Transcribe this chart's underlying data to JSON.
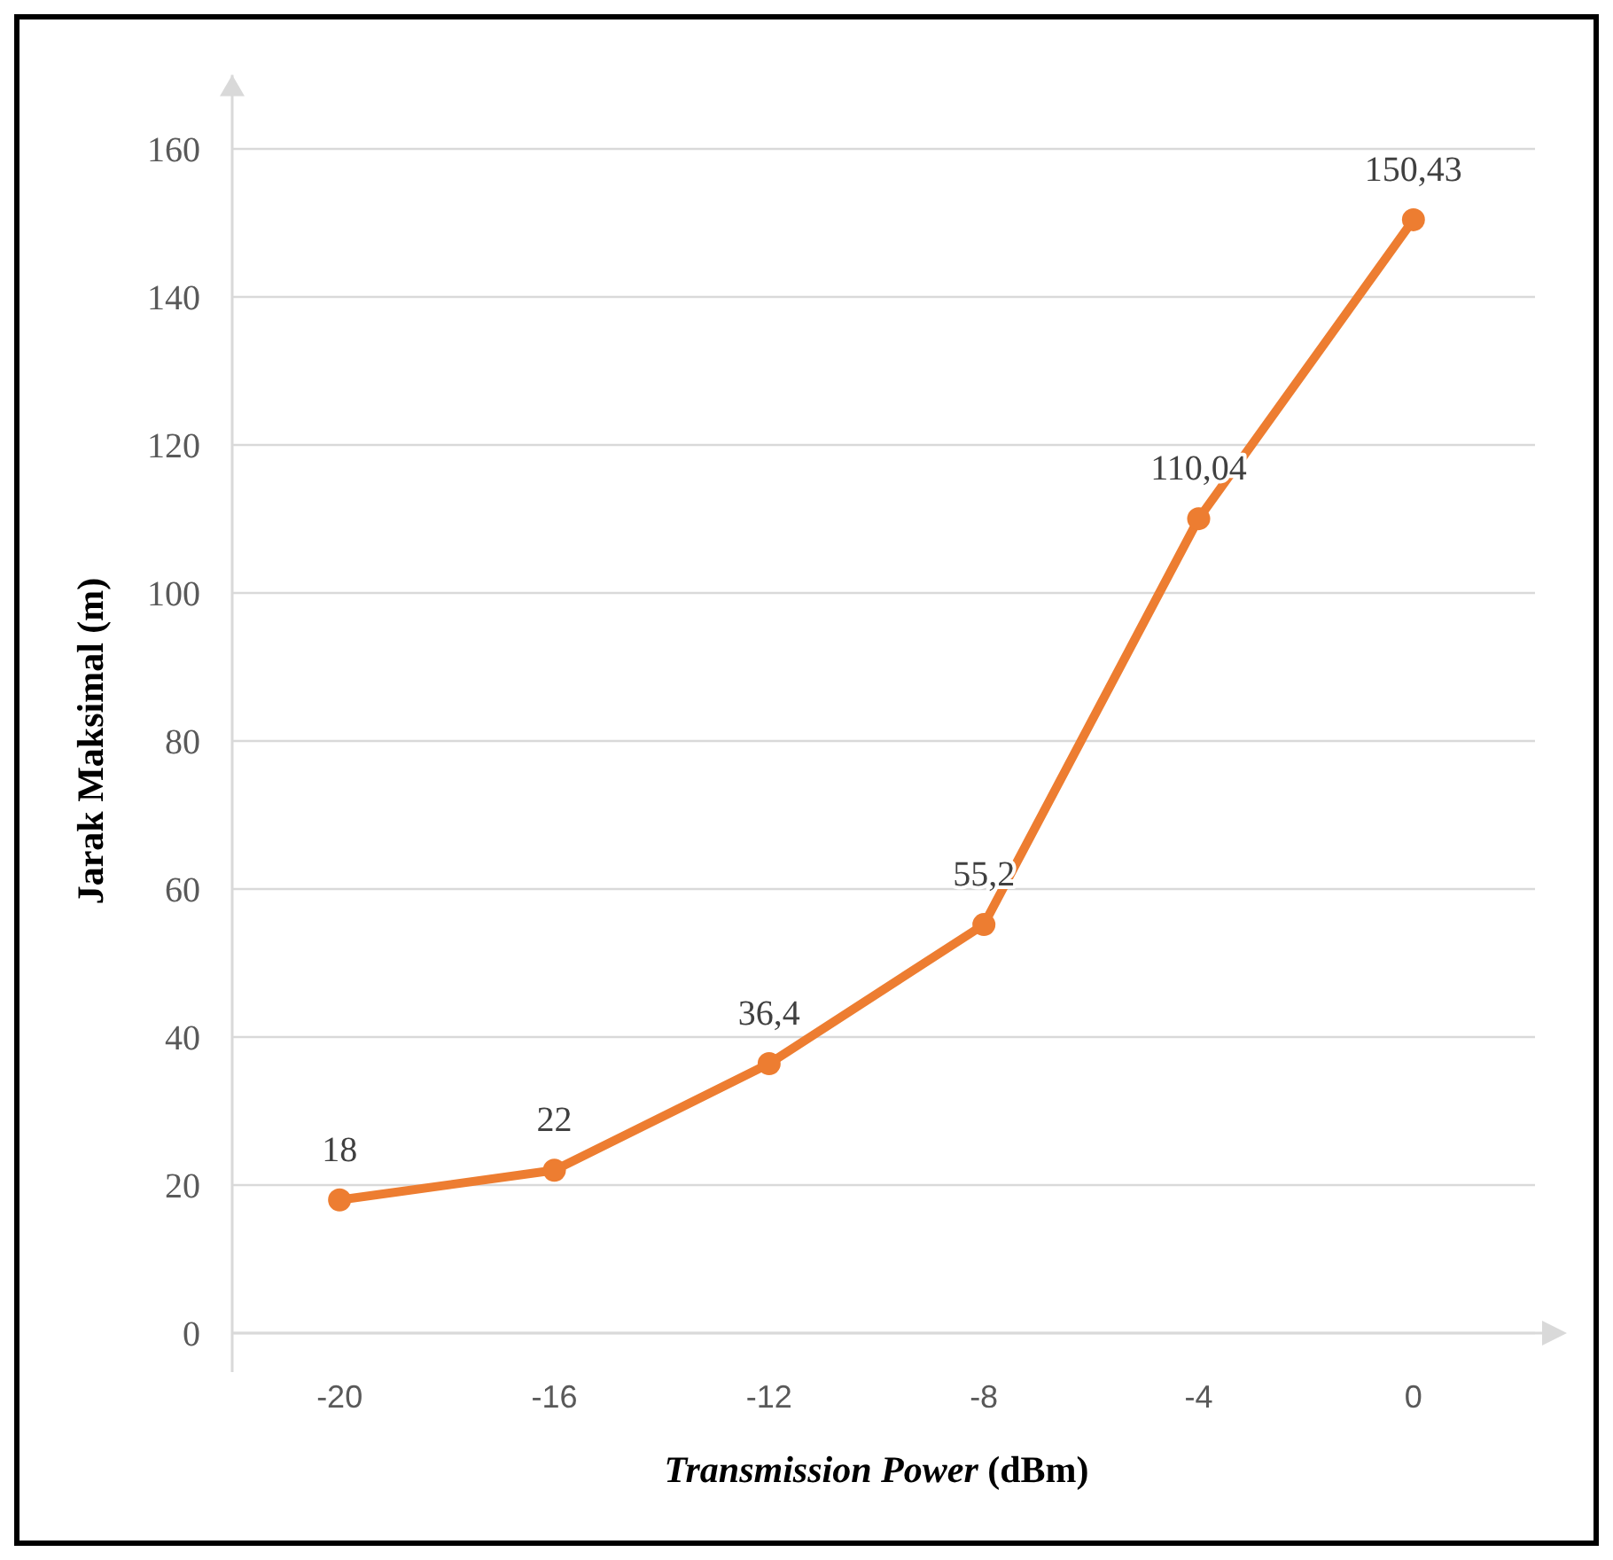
{
  "chart_data": {
    "type": "line",
    "xlabel": "Transmission Power (dBm)",
    "ylabel": "Jarak Maksimal (m)",
    "categories": [
      "-20",
      "-16",
      "-12",
      "-8",
      "-4",
      "0"
    ],
    "series": [
      {
        "color": "#ed7d31",
        "values": [
          18,
          22,
          36.4,
          55.2,
          110.04,
          150.43
        ],
        "value_labels": [
          "18",
          "22",
          "36,4",
          "55,2",
          "110,04",
          "150,43"
        ]
      }
    ],
    "ylim": [
      0,
      170
    ],
    "yticks": [
      0,
      20,
      40,
      60,
      80,
      100,
      120,
      140,
      160
    ],
    "grid": "y",
    "marker": "circle",
    "line_style": "solid"
  }
}
